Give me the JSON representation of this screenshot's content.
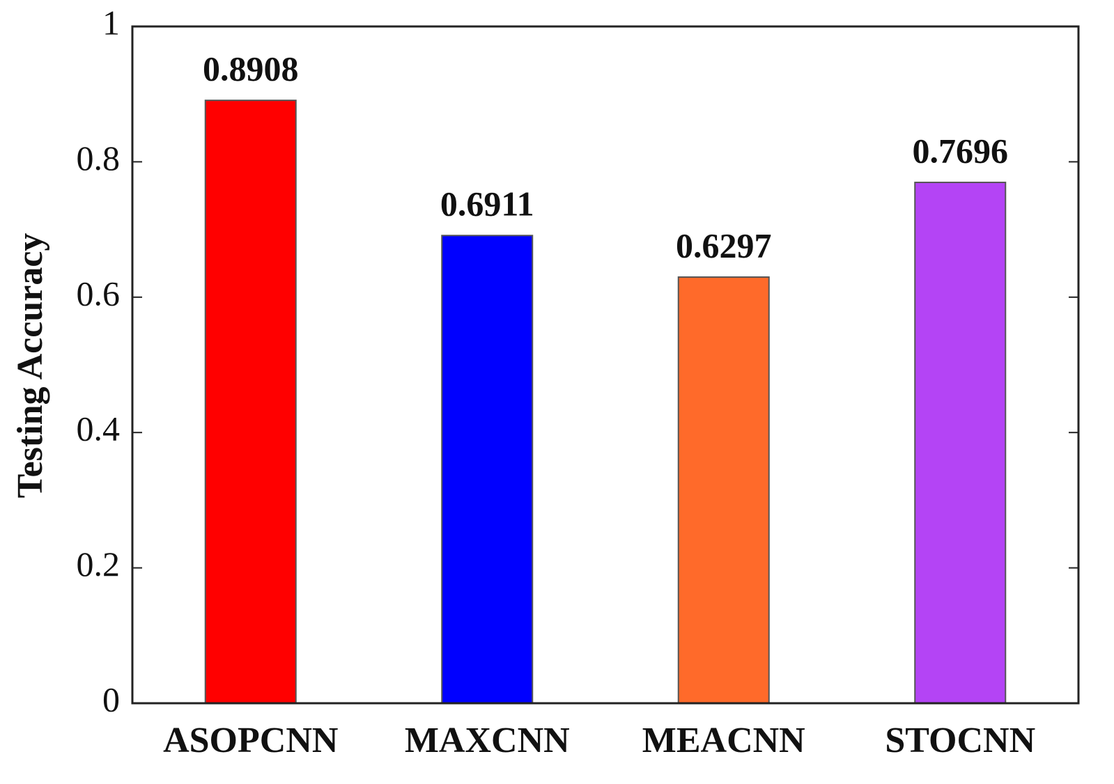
{
  "chart_data": {
    "type": "bar",
    "ylabel": "Testing Accuracy",
    "categories": [
      "ASOPCNN",
      "MAXCNN",
      "MEACNN",
      "STOCNN"
    ],
    "values": [
      0.8908,
      0.6911,
      0.6297,
      0.7696
    ],
    "colors": [
      "#ff0000",
      "#0000ff",
      "#ff6a2a",
      "#b444f5"
    ],
    "ylim": [
      0,
      1
    ],
    "yticks": [
      0,
      0.2,
      0.4,
      0.6,
      0.8,
      1
    ],
    "grid": false
  }
}
